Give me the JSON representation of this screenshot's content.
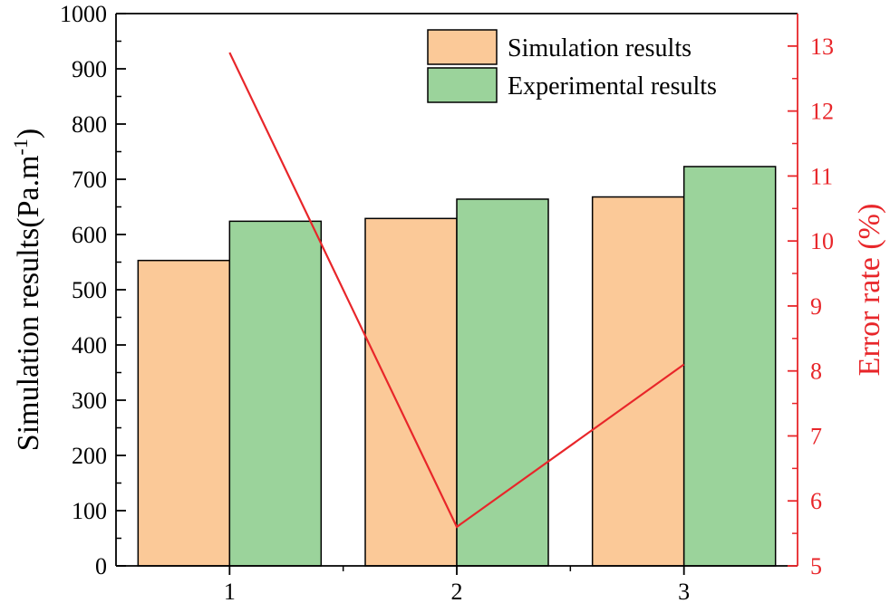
{
  "chart_data": {
    "type": "bar",
    "categories": [
      "1",
      "2",
      "3"
    ],
    "series": [
      {
        "name": "Simulation results",
        "values": [
          553,
          629,
          668
        ],
        "color": "#fbc998"
      },
      {
        "name": "Experimental results",
        "values": [
          624,
          664,
          723
        ],
        "color": "#9bd39b"
      }
    ],
    "line_series": {
      "name": "Error rate",
      "values": [
        12.9,
        5.6,
        8.1
      ],
      "color": "#e8262a"
    },
    "ylabel": "Simulation results(Pa.m",
    "ylabel_sup": "-1",
    "ylabel_close": ")",
    "y2label": "Error rate (%)",
    "ylim": [
      0,
      1000
    ],
    "y2lim": [
      5,
      13.5
    ],
    "yticks": [
      "0",
      "100",
      "200",
      "300",
      "400",
      "500",
      "600",
      "700",
      "800",
      "900",
      "1000"
    ],
    "y2ticks": [
      "5",
      "6",
      "7",
      "8",
      "9",
      "10",
      "11",
      "12",
      "13"
    ],
    "legend_position": "top-right"
  }
}
